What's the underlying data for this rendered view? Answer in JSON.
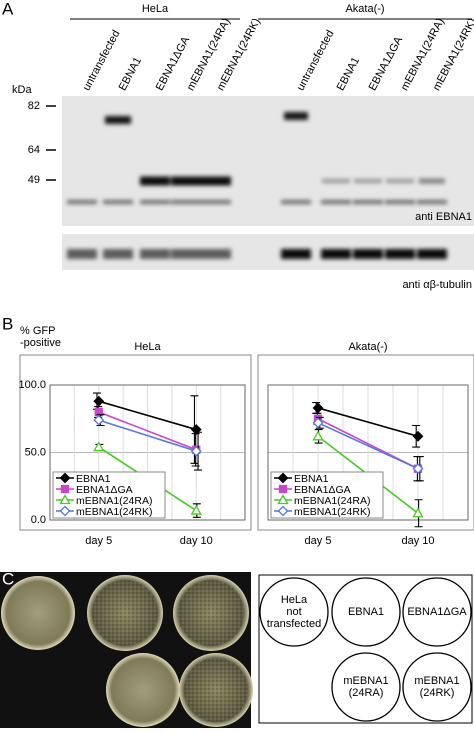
{
  "panel_a": {
    "label": "A",
    "groups": [
      "HeLa",
      "Akata(-)"
    ],
    "lanes": [
      "untransfected",
      "EBNA1",
      "EBNA1ΔGA",
      "mEBNA1(24RA)",
      "mEBNA1(24RK)"
    ],
    "kda": "kDa",
    "markers": [
      82,
      64,
      49
    ],
    "blot_labels": [
      "anti EBNA1",
      "anti αβ-tubulin"
    ]
  },
  "panel_b": {
    "label": "B",
    "y_label": [
      "% GFP",
      "-positive"
    ]
  },
  "chart_data": [
    {
      "type": "line",
      "title": "HeLa",
      "categories": [
        "day 5",
        "day 10"
      ],
      "ylim": [
        0,
        100
      ],
      "yticks": [
        {
          "value": 0,
          "label": "0.0"
        },
        {
          "value": 50,
          "label": "50.0"
        },
        {
          "value": 100,
          "label": "100.0"
        }
      ],
      "grid": true,
      "legend": "lower-left",
      "series": [
        {
          "name": "EBNA1",
          "color": "#000000",
          "marker": "diamond-filled",
          "values": [
            88,
            67
          ],
          "errors": [
            6,
            25
          ]
        },
        {
          "name": "EBNA1ΔGA",
          "color": "#cc44cc",
          "marker": "square-filled",
          "values": [
            80,
            52
          ],
          "errors": [
            4,
            12
          ]
        },
        {
          "name": "mEBNA1(24RA)",
          "color": "#44cc22",
          "marker": "triangle-open",
          "values": [
            54,
            7
          ],
          "errors": [
            2,
            5
          ]
        },
        {
          "name": "mEBNA1(24RK)",
          "color": "#5577dd",
          "marker": "diamond-open",
          "values": [
            74,
            51
          ],
          "errors": [
            4,
            14
          ]
        }
      ]
    },
    {
      "type": "line",
      "title": "Akata(-)",
      "categories": [
        "day 5",
        "day 10"
      ],
      "ylim": [
        0,
        100
      ],
      "yticks": [
        0,
        50,
        100
      ],
      "grid": true,
      "legend": "lower-left",
      "series": [
        {
          "name": "EBNA1",
          "color": "#000000",
          "marker": "diamond-filled",
          "values": [
            83,
            62
          ],
          "errors": [
            4,
            8
          ]
        },
        {
          "name": "EBNA1ΔGA",
          "color": "#cc44cc",
          "marker": "square-filled",
          "values": [
            75,
            38
          ],
          "errors": [
            4,
            9
          ]
        },
        {
          "name": "mEBNA1(24RA)",
          "color": "#44cc22",
          "marker": "triangle-open",
          "values": [
            62,
            5
          ],
          "errors": [
            5,
            10
          ]
        },
        {
          "name": "mEBNA1(24RK)",
          "color": "#5577dd",
          "marker": "diamond-open",
          "values": [
            72,
            38
          ],
          "errors": [
            4,
            9
          ]
        }
      ]
    }
  ],
  "panel_c": {
    "label": "C",
    "plates": [
      [
        "HeLa",
        "not",
        "transfected"
      ],
      [
        "EBNA1"
      ],
      [
        "EBNA1ΔGA"
      ],
      [
        "mEBNA1",
        "(24RA)"
      ],
      [
        "mEBNA1",
        "(24RK)"
      ]
    ]
  }
}
